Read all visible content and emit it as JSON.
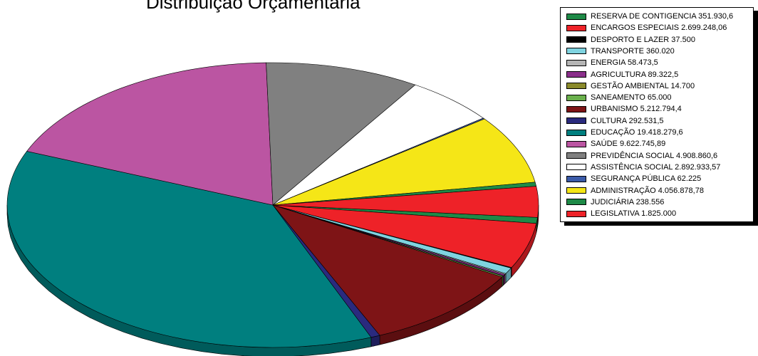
{
  "chart_data": {
    "type": "pie",
    "title": "Distribuição Orçamentária",
    "series": [
      {
        "label": "RESERVA DE CONTIGENCIA 351.930,6",
        "value": 351930.6,
        "color": "#1e8a47"
      },
      {
        "label": "ENCARGOS ESPECIAIS 2.699.248,06",
        "value": 2699248.06,
        "color": "#ee2228"
      },
      {
        "label": "DESPORTO E LAZER 37.500",
        "value": 37500,
        "color": "#000000"
      },
      {
        "label": "TRANSPORTE 360.020",
        "value": 360020,
        "color": "#7fd3e0"
      },
      {
        "label": "ENERGIA 58.473,5",
        "value": 58473.5,
        "color": "#b5b5b5"
      },
      {
        "label": "AGRICULTURA 89.322,5",
        "value": 89322.5,
        "color": "#8b2f8b"
      },
      {
        "label": "GESTÃO AMBIENTAL 14.700",
        "value": 14700,
        "color": "#8a8a2a"
      },
      {
        "label": "SANEAMENTO 65.000",
        "value": 65000,
        "color": "#6ab04c"
      },
      {
        "label": "URBANISMO 5.212.794,4",
        "value": 5212794.4,
        "color": "#7e1416"
      },
      {
        "label": "CULTURA 292.531,5",
        "value": 292531.5,
        "color": "#2a2a7e"
      },
      {
        "label": "EDUCAÇÃO 19.418.279,6",
        "value": 19418279.6,
        "color": "#007f7f"
      },
      {
        "label": "SAÚDE 9.622.745,89",
        "value": 9622745.89,
        "color": "#bb55a2"
      },
      {
        "label": "PREVIDÊNCIA SOCIAL 4.908.860,6",
        "value": 4908860.6,
        "color": "#808080"
      },
      {
        "label": "ASSISTÊNCIA SOCIAL 2.892.933,57",
        "value": 2892933.57,
        "color": "#ffffff"
      },
      {
        "label": "SEGURANÇA PÚBLICA 62.225",
        "value": 62225,
        "color": "#3a5aa8"
      },
      {
        "label": "ADMINISTRAÇÃO 4.056.878,78",
        "value": 4056878.78,
        "color": "#f5e617"
      },
      {
        "label": "JUDICIÁRIA 238.556",
        "value": 238556,
        "color": "#1e8a47"
      },
      {
        "label": "LEGISLATIVA 1.825.000",
        "value": 1825000,
        "color": "#ee2228"
      }
    ],
    "legend_position": "top-right"
  }
}
